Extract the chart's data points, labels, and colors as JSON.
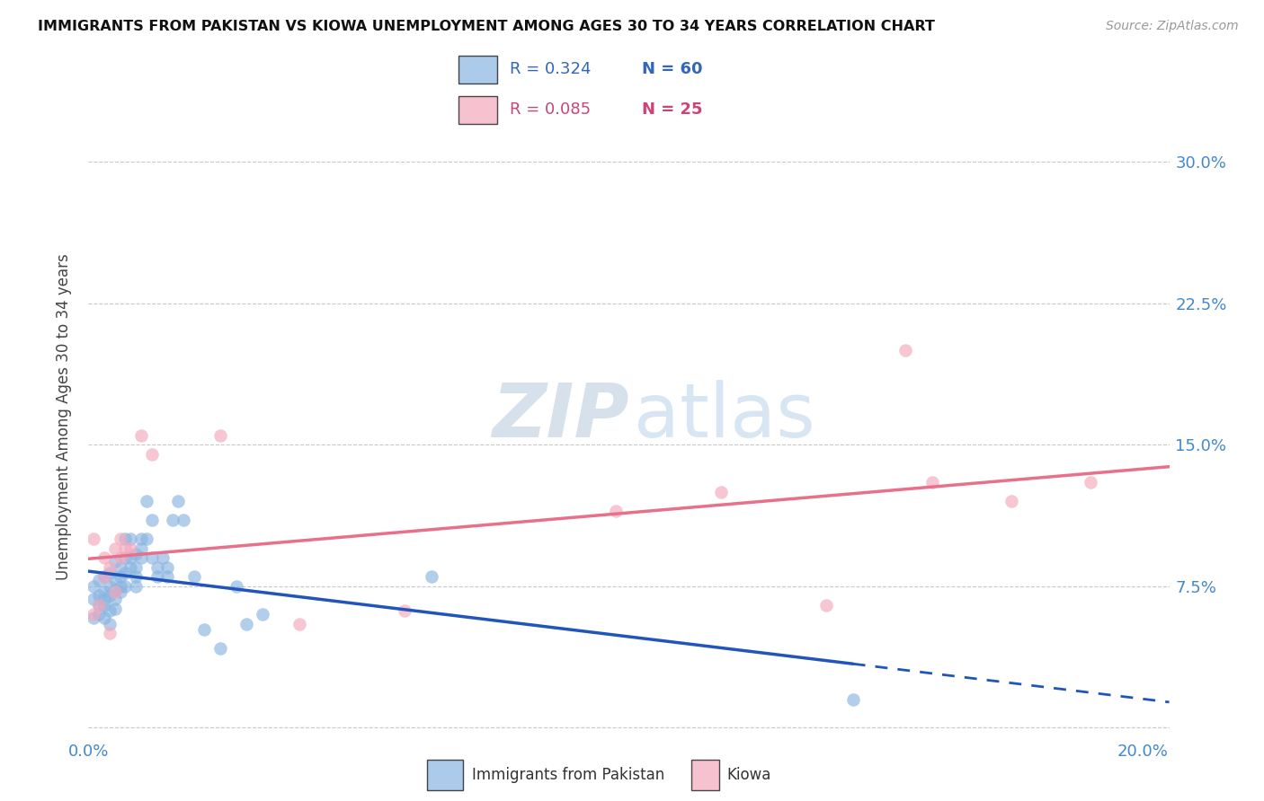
{
  "title": "IMMIGRANTS FROM PAKISTAN VS KIOWA UNEMPLOYMENT AMONG AGES 30 TO 34 YEARS CORRELATION CHART",
  "source": "Source: ZipAtlas.com",
  "ylabel": "Unemployment Among Ages 30 to 34 years",
  "xlim": [
    0.0,
    0.205
  ],
  "ylim": [
    -0.005,
    0.335
  ],
  "yticks": [
    0.0,
    0.075,
    0.15,
    0.225,
    0.3
  ],
  "yticklabels": [
    "",
    "7.5%",
    "15.0%",
    "22.5%",
    "30.0%"
  ],
  "xticks": [
    0.0,
    0.05,
    0.1,
    0.15,
    0.2
  ],
  "xticklabels": [
    "0.0%",
    "",
    "",
    "",
    "20.0%"
  ],
  "background_color": "#ffffff",
  "grid_color": "#c8c8c8",
  "blue_color": "#89b4e0",
  "pink_color": "#f4a8bc",
  "blue_line_color": "#2255bb",
  "pink_line_color": "#e8708a",
  "R_blue": 0.324,
  "N_blue": 60,
  "R_pink": 0.085,
  "N_pink": 25,
  "blue_points_x": [
    0.001,
    0.001,
    0.001,
    0.002,
    0.002,
    0.002,
    0.002,
    0.003,
    0.003,
    0.003,
    0.003,
    0.003,
    0.004,
    0.004,
    0.004,
    0.004,
    0.004,
    0.005,
    0.005,
    0.005,
    0.005,
    0.005,
    0.006,
    0.006,
    0.006,
    0.006,
    0.007,
    0.007,
    0.007,
    0.007,
    0.008,
    0.008,
    0.008,
    0.009,
    0.009,
    0.009,
    0.009,
    0.01,
    0.01,
    0.01,
    0.011,
    0.011,
    0.012,
    0.012,
    0.013,
    0.013,
    0.014,
    0.015,
    0.015,
    0.016,
    0.017,
    0.018,
    0.02,
    0.022,
    0.025,
    0.028,
    0.03,
    0.033,
    0.065,
    0.145
  ],
  "blue_points_y": [
    0.058,
    0.068,
    0.075,
    0.06,
    0.07,
    0.078,
    0.065,
    0.065,
    0.072,
    0.08,
    0.068,
    0.058,
    0.07,
    0.075,
    0.082,
    0.062,
    0.055,
    0.078,
    0.073,
    0.068,
    0.063,
    0.088,
    0.08,
    0.072,
    0.085,
    0.075,
    0.09,
    0.082,
    0.1,
    0.075,
    0.085,
    0.09,
    0.1,
    0.08,
    0.085,
    0.075,
    0.092,
    0.1,
    0.095,
    0.09,
    0.12,
    0.1,
    0.09,
    0.11,
    0.085,
    0.08,
    0.09,
    0.08,
    0.085,
    0.11,
    0.12,
    0.11,
    0.08,
    0.052,
    0.042,
    0.075,
    0.055,
    0.06,
    0.08,
    0.015
  ],
  "pink_points_x": [
    0.001,
    0.001,
    0.002,
    0.003,
    0.003,
    0.004,
    0.004,
    0.005,
    0.005,
    0.006,
    0.006,
    0.007,
    0.008,
    0.01,
    0.012,
    0.025,
    0.04,
    0.06,
    0.1,
    0.12,
    0.14,
    0.155,
    0.16,
    0.175,
    0.19
  ],
  "pink_points_y": [
    0.06,
    0.1,
    0.065,
    0.09,
    0.08,
    0.085,
    0.05,
    0.095,
    0.072,
    0.1,
    0.09,
    0.095,
    0.095,
    0.155,
    0.145,
    0.155,
    0.055,
    0.062,
    0.115,
    0.125,
    0.065,
    0.2,
    0.13,
    0.12,
    0.13
  ]
}
